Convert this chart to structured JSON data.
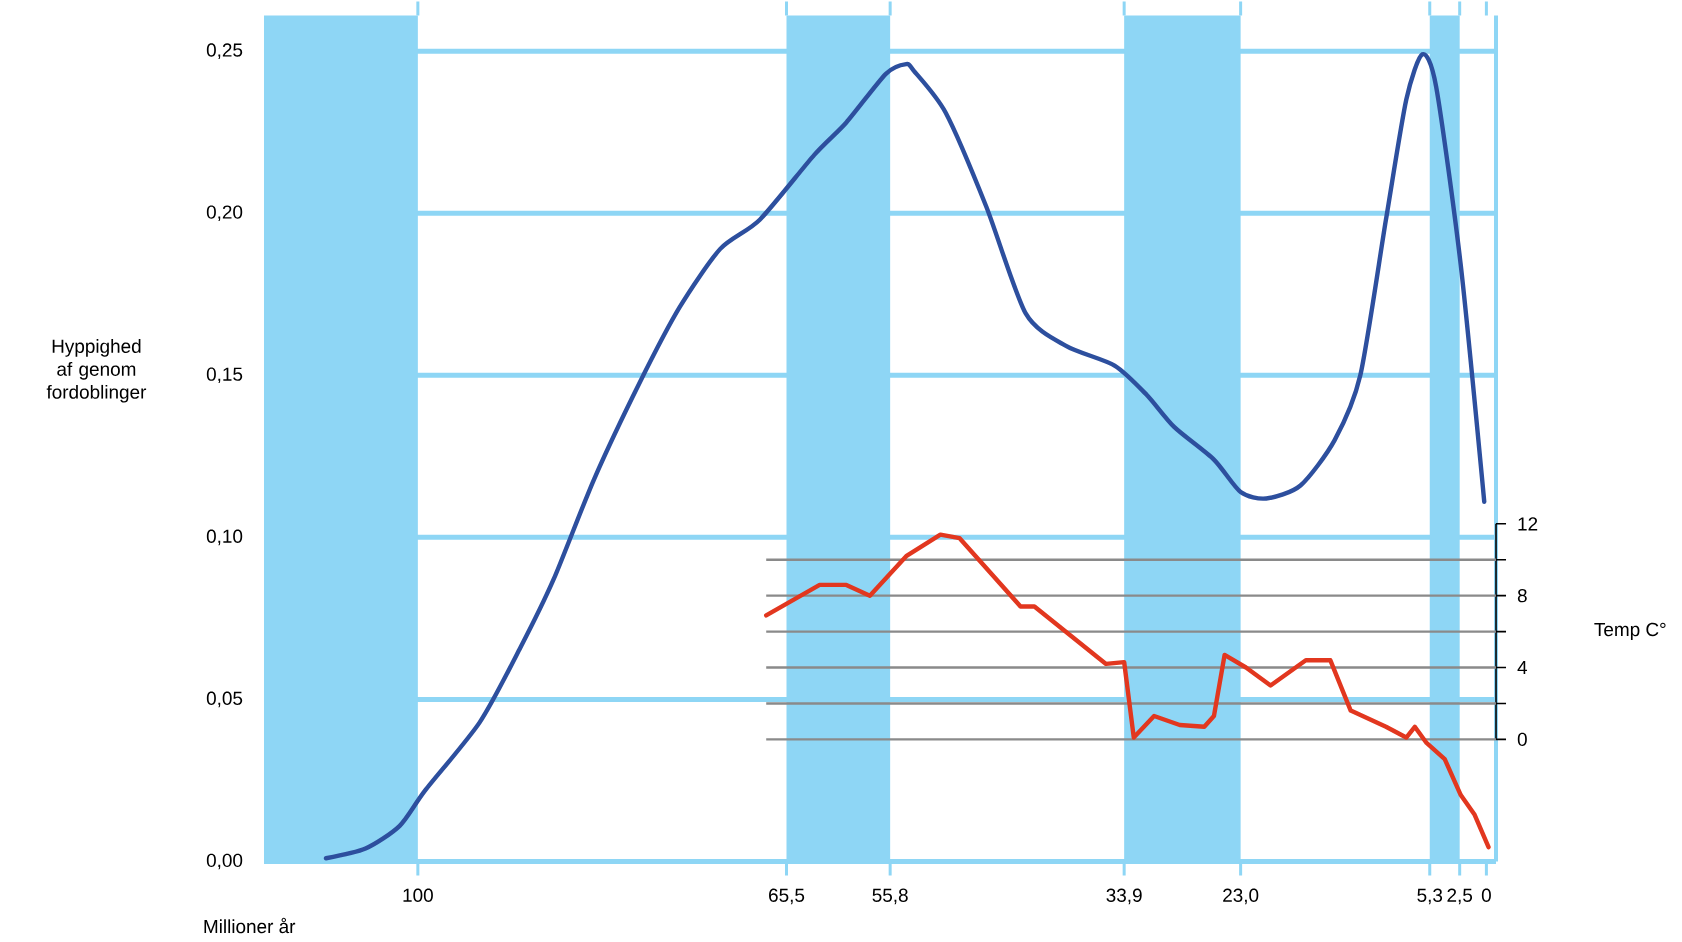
{
  "chart_data": {
    "type": "line",
    "xlabel": "Millioner år",
    "ylabel": "Hyppighed af genom fordoblinger",
    "y2label": "Temp C°",
    "xlim": [
      114.4,
      -0.9
    ],
    "xticks": [
      100,
      {
        "value": 65.5,
        "label": "65,5"
      },
      {
        "value": 55.8,
        "label": "55,8"
      },
      {
        "value": 33.9,
        "label": "33,9"
      },
      {
        "value": 23.0,
        "label": "23,0"
      },
      {
        "value": 5.3,
        "label": "5,3"
      },
      {
        "value": 2.5,
        "label": "2,5"
      },
      0
    ],
    "ylim": [
      0,
      0.261
    ],
    "yticks": [
      {
        "value": 0,
        "label": "0,00"
      },
      {
        "value": 0.05,
        "label": "0,05"
      },
      {
        "value": 0.1,
        "label": "0,10"
      },
      {
        "value": 0.15,
        "label": "0,15"
      },
      {
        "value": 0.2,
        "label": "0,20"
      },
      {
        "value": 0.25,
        "label": "0,25"
      }
    ],
    "y2lim": [
      -6.8,
      40.3
    ],
    "y2ticks": [
      0,
      {
        "value": 2,
        "label": null
      },
      4,
      {
        "value": 6,
        "label": null
      },
      8,
      {
        "value": 10,
        "label": null
      },
      12
    ],
    "grid": "y",
    "bands": [
      {
        "axis": "x",
        "from": 114.4,
        "to": 100,
        "color": "#8ed6f5"
      },
      {
        "axis": "x",
        "from": 65.5,
        "to": 55.8,
        "color": "#8ed6f5"
      },
      {
        "axis": "x",
        "from": 33.9,
        "to": 23.0,
        "color": "#8ed6f5"
      },
      {
        "axis": "x",
        "from": 5.3,
        "to": 2.5,
        "color": "#8ed6f5"
      }
    ],
    "ref_lines": [
      {
        "axis": "y2",
        "value": 0,
        "color": "#8a8a8a"
      },
      {
        "axis": "y2",
        "value": 2,
        "color": "#8a8a8a"
      },
      {
        "axis": "y2",
        "value": 4,
        "color": "#8a8a8a"
      },
      {
        "axis": "y2",
        "value": 6,
        "color": "#8a8a8a"
      },
      {
        "axis": "y2",
        "value": 8,
        "color": "#8a8a8a"
      },
      {
        "axis": "y2",
        "value": 10,
        "color": "#8a8a8a"
      }
    ],
    "series": [
      {
        "color": "#2d4f9e",
        "x": [
          108.6,
          104.9,
          101.7,
          99.3,
          94.2,
          90.4,
          87.3,
          83.5,
          79.2,
          75.5,
          71.7,
          68.0,
          62.9,
          59.9,
          56.2,
          54.3,
          53.6,
          50.6,
          46.8,
          43.1,
          39.3,
          34.8,
          31.8,
          29.2,
          25.5,
          23.0,
          20.6,
          17.4,
          14.2,
          11.8,
          9.4,
          7.5,
          6.0,
          4.7,
          2.4,
          0.2
        ],
        "values": [
          0.001,
          0.004,
          0.011,
          0.022,
          0.043,
          0.066,
          0.087,
          0.118,
          0.148,
          0.171,
          0.189,
          0.198,
          0.218,
          0.228,
          0.243,
          0.246,
          0.244,
          0.231,
          0.202,
          0.169,
          0.159,
          0.153,
          0.144,
          0.134,
          0.124,
          0.114,
          0.112,
          0.116,
          0.13,
          0.15,
          0.198,
          0.235,
          0.249,
          0.239,
          0.184,
          0.111
        ]
      },
      {
        "color": "#e2371f",
        "axis": "y2",
        "x": [
          67.4,
          62.4,
          59.9,
          57.7,
          54.3,
          51.1,
          49.3,
          43.6,
          42.3,
          35.6,
          33.9,
          33.0,
          31.1,
          28.7,
          26.4,
          25.5,
          24.5,
          22.5,
          20.2,
          16.9,
          14.6,
          12.7,
          9.4,
          7.5,
          6.7,
          5.6,
          3.9,
          2.4,
          1.1,
          -0.2
        ],
        "values": [
          6.9,
          8.6,
          8.6,
          8.0,
          10.2,
          11.4,
          11.2,
          7.4,
          7.4,
          4.2,
          4.3,
          0.1,
          1.3,
          0.8,
          0.7,
          1.3,
          4.7,
          4.0,
          3.0,
          4.4,
          4.4,
          1.6,
          0.7,
          0.1,
          0.7,
          -0.2,
          -1.1,
          -3.1,
          -4.2,
          -6.0
        ]
      }
    ]
  }
}
